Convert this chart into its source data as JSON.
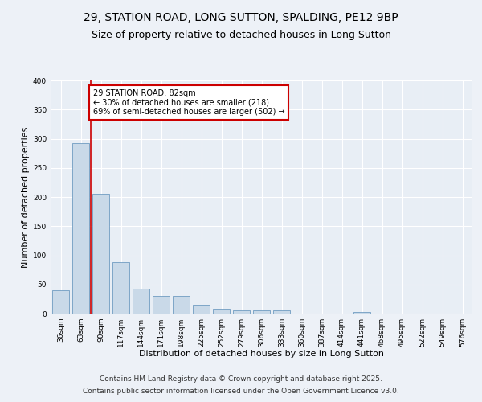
{
  "title1": "29, STATION ROAD, LONG SUTTON, SPALDING, PE12 9BP",
  "title2": "Size of property relative to detached houses in Long Sutton",
  "xlabel": "Distribution of detached houses by size in Long Sutton",
  "ylabel": "Number of detached properties",
  "categories": [
    "36sqm",
    "63sqm",
    "90sqm",
    "117sqm",
    "144sqm",
    "171sqm",
    "198sqm",
    "225sqm",
    "252sqm",
    "279sqm",
    "306sqm",
    "333sqm",
    "360sqm",
    "387sqm",
    "414sqm",
    "441sqm",
    "468sqm",
    "495sqm",
    "522sqm",
    "549sqm",
    "576sqm"
  ],
  "values": [
    40,
    293,
    205,
    88,
    43,
    30,
    30,
    15,
    8,
    5,
    6,
    5,
    0,
    0,
    0,
    3,
    0,
    0,
    0,
    0,
    0
  ],
  "bar_color": "#c9d9e8",
  "bar_edge_color": "#5b8db8",
  "background_color": "#e8eef5",
  "grid_color": "#ffffff",
  "red_line_x": 1.5,
  "annotation_title": "29 STATION ROAD: 82sqm",
  "annotation_line1": "← 30% of detached houses are smaller (218)",
  "annotation_line2": "69% of semi-detached houses are larger (502) →",
  "annotation_box_color": "#ffffff",
  "annotation_box_edge": "#cc0000",
  "ylim": [
    0,
    400
  ],
  "yticks": [
    0,
    50,
    100,
    150,
    200,
    250,
    300,
    350,
    400
  ],
  "footer1": "Contains HM Land Registry data © Crown copyright and database right 2025.",
  "footer2": "Contains public sector information licensed under the Open Government Licence v3.0.",
  "title_fontsize": 10,
  "subtitle_fontsize": 9,
  "tick_fontsize": 6.5,
  "axis_label_fontsize": 8,
  "footer_fontsize": 6.5
}
